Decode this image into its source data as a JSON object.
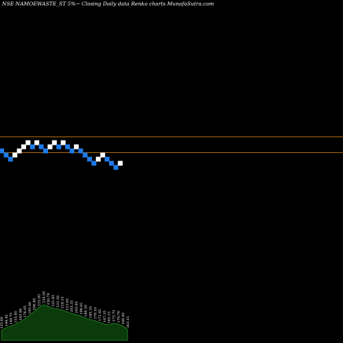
{
  "chart_data": {
    "type": "renko",
    "title": "NSE NAMOEWASTE_ST 5%~  Closing Daily data  Renko  charts MunafaSutra.com",
    "colors": {
      "up": "#ffffff",
      "down": "#1e7be8",
      "reference_line": "#b06f0f",
      "volume_fill": "#0b3a0b",
      "volume_line": "#1f7a1f",
      "background": "#000000"
    },
    "bricks": [
      {
        "level": 0,
        "dir": "down"
      },
      {
        "level": -1,
        "dir": "down"
      },
      {
        "level": -2,
        "dir": "down"
      },
      {
        "level": -1,
        "dir": "up"
      },
      {
        "level": 0,
        "dir": "up"
      },
      {
        "level": 1,
        "dir": "up"
      },
      {
        "level": 2,
        "dir": "up"
      },
      {
        "level": 1,
        "dir": "down"
      },
      {
        "level": 2,
        "dir": "up"
      },
      {
        "level": 1,
        "dir": "down"
      },
      {
        "level": 0,
        "dir": "down"
      },
      {
        "level": 1,
        "dir": "up"
      },
      {
        "level": 2,
        "dir": "up"
      },
      {
        "level": 1,
        "dir": "down"
      },
      {
        "level": 2,
        "dir": "up"
      },
      {
        "level": 1,
        "dir": "down"
      },
      {
        "level": 0,
        "dir": "down"
      },
      {
        "level": 1,
        "dir": "up"
      },
      {
        "level": 0,
        "dir": "down"
      },
      {
        "level": -1,
        "dir": "down"
      },
      {
        "level": -2,
        "dir": "down"
      },
      {
        "level": -3,
        "dir": "down"
      },
      {
        "level": -2,
        "dir": "up"
      },
      {
        "level": -1,
        "dir": "up"
      },
      {
        "level": -2,
        "dir": "down"
      },
      {
        "level": -3,
        "dir": "down"
      },
      {
        "level": -4,
        "dir": "down"
      },
      {
        "level": -3,
        "dir": "up"
      }
    ],
    "volume_labels": [
      "135.60",
      "144.45",
      "149.75",
      "153.85",
      "165.90",
      "176.05",
      "193.40",
      "206.48",
      "225.95",
      "234.50",
      "230.70",
      "225.45",
      "222.30",
      "219.15",
      "213.65",
      "205.35",
      "203.95",
      "199.05",
      "189.20",
      "185.35",
      "179.10",
      "172.45",
      "167.35",
      "165.15",
      "173.75",
      "170.70",
      "166.40",
      "163.15"
    ],
    "volume_profile": [
      0.28,
      0.35,
      0.4,
      0.45,
      0.52,
      0.6,
      0.7,
      0.8,
      0.92,
      1.0,
      0.95,
      0.9,
      0.88,
      0.85,
      0.8,
      0.75,
      0.72,
      0.68,
      0.62,
      0.58,
      0.55,
      0.5,
      0.46,
      0.43,
      0.48,
      0.45,
      0.4,
      0.3
    ]
  }
}
